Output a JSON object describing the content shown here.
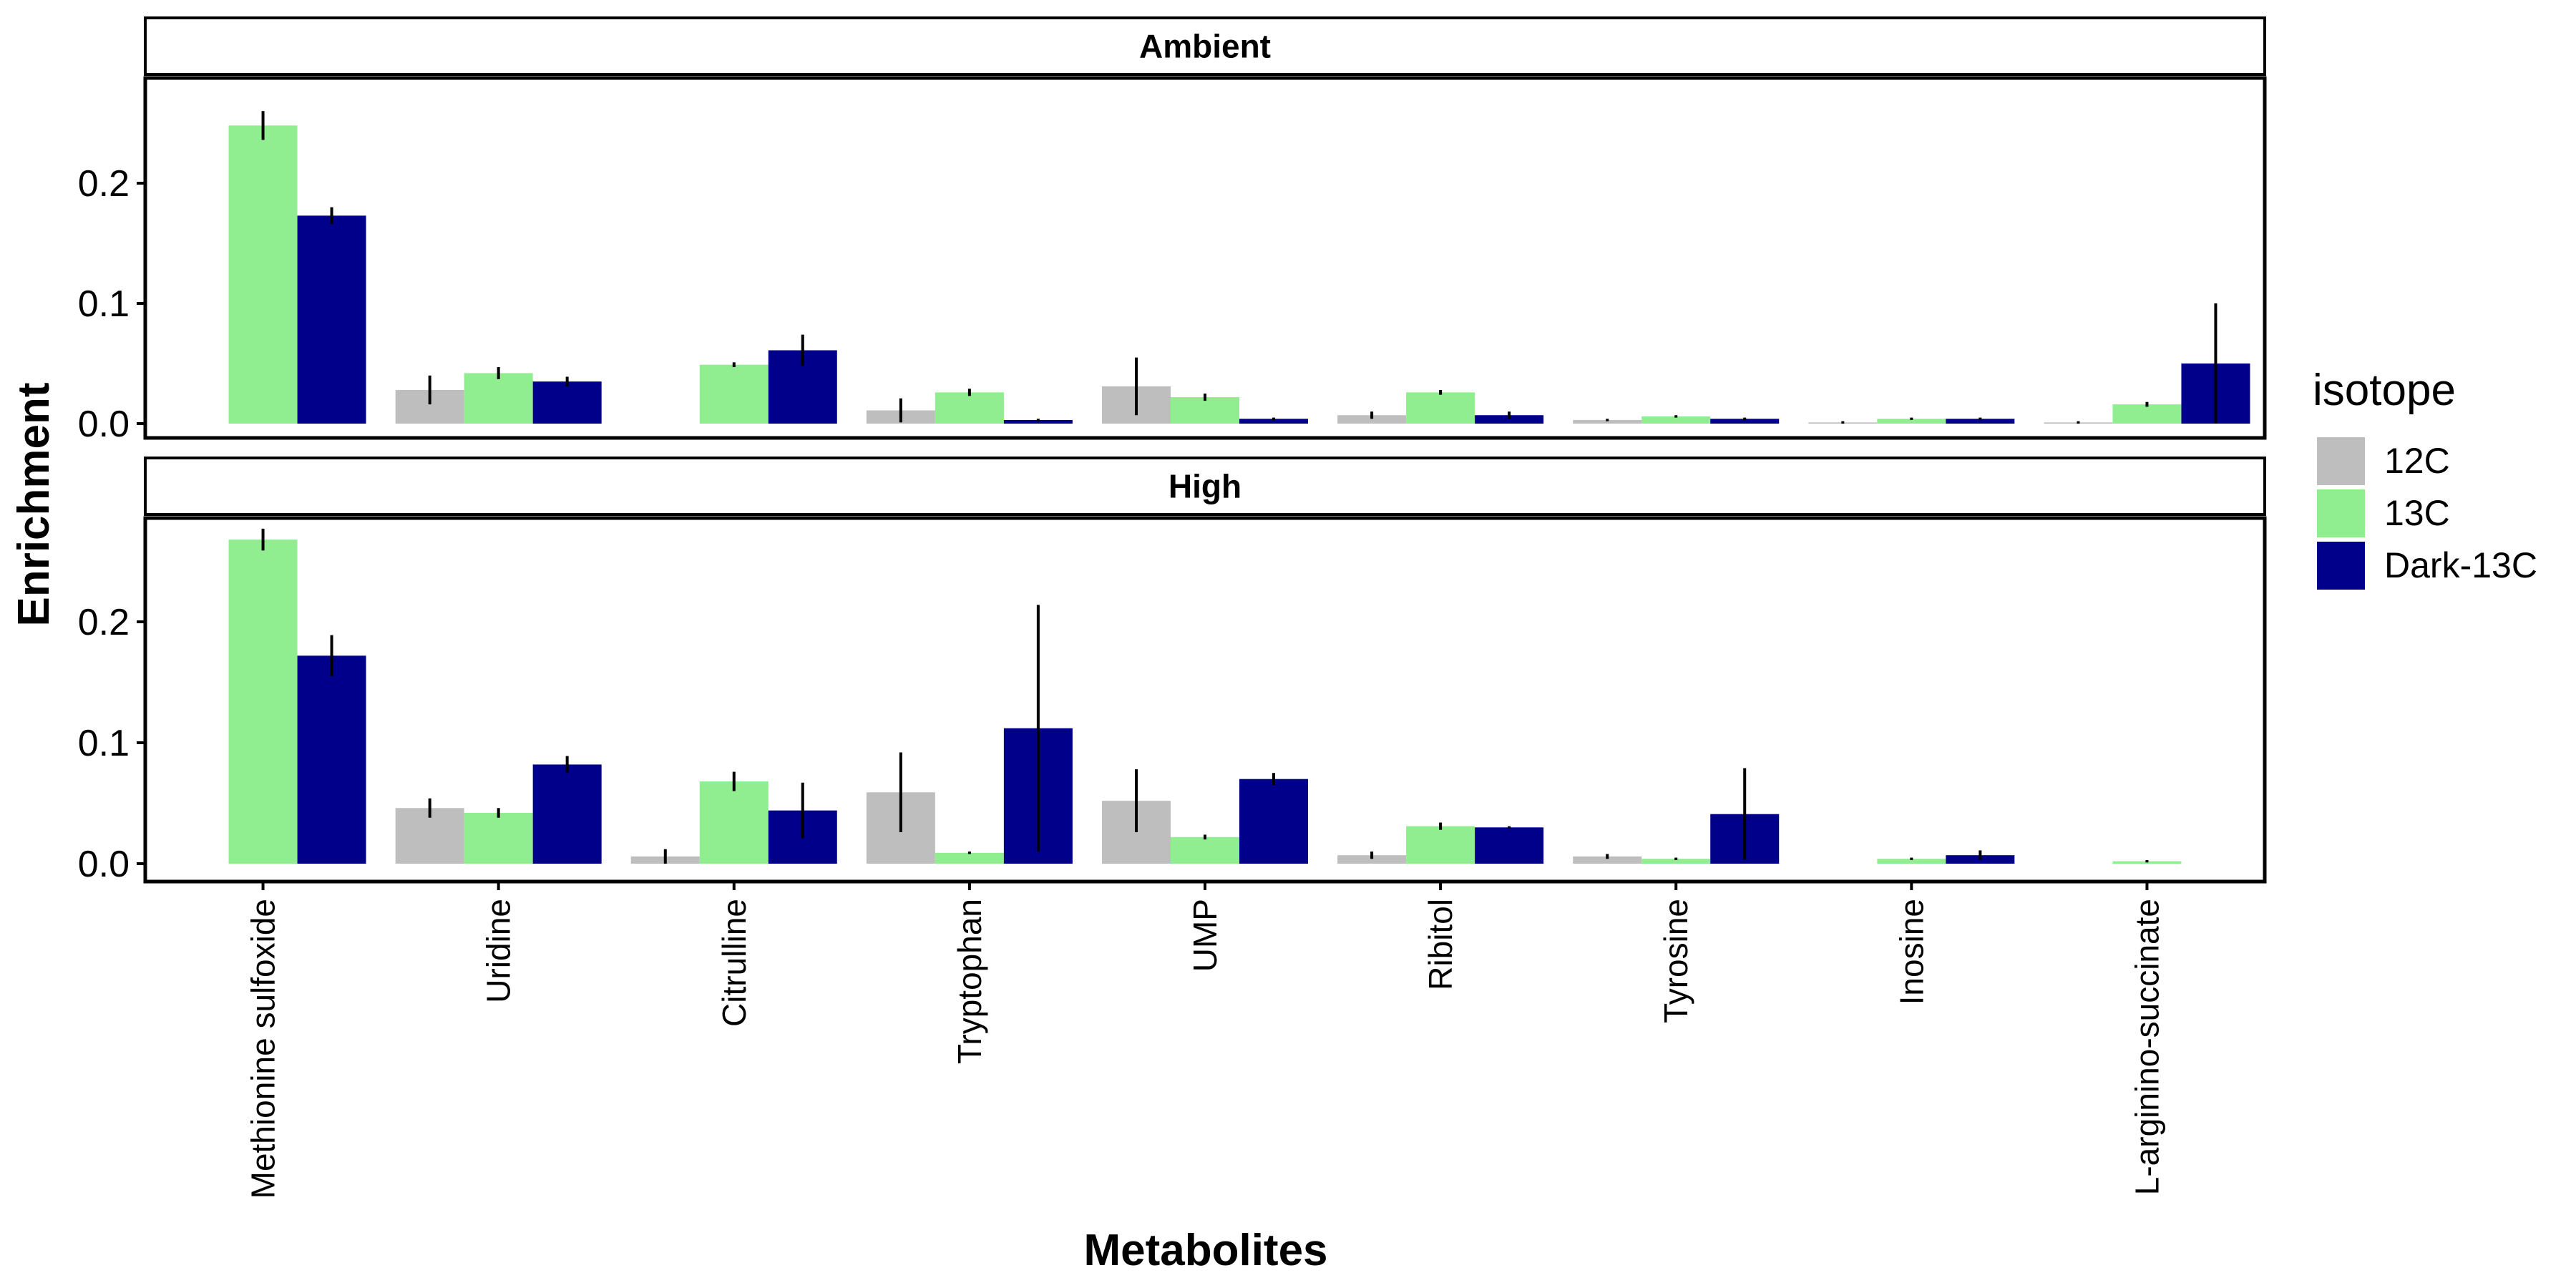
{
  "chart_data": {
    "type": "bar",
    "xlabel": "Metabolites",
    "ylabel": "Enrichment",
    "ylim": [
      0,
      0.28
    ],
    "yticks": [
      0.0,
      0.1,
      0.2
    ],
    "ytick_labels": [
      "0.0",
      "0.1",
      "0.2"
    ],
    "categories": [
      "Methionine sulfoxide",
      "Uridine",
      "Citrulline",
      "Tryptophan",
      "UMP",
      "Ribitol",
      "Tyrosine",
      "Inosine",
      "L-arginino-succinate"
    ],
    "legend": {
      "title": "isotope",
      "position": "right",
      "entries": [
        {
          "name": "12C",
          "color": "#BEBEBE"
        },
        {
          "name": "13C",
          "color": "#90EE90"
        },
        {
          "name": "Dark-13C",
          "color": "#00008B"
        }
      ]
    },
    "panels": [
      {
        "title": "Ambient",
        "series": [
          {
            "name": "12C",
            "values": [
              null,
              0.028,
              null,
              0.011,
              0.031,
              0.007,
              0.003,
              0.001,
              0.001
            ],
            "errors": [
              null,
              0.012,
              null,
              0.01,
              0.024,
              0.003,
              0.001,
              0.001,
              0.001
            ]
          },
          {
            "name": "13C",
            "values": [
              0.248,
              0.042,
              0.049,
              0.026,
              0.022,
              0.026,
              0.006,
              0.004,
              0.016
            ],
            "errors": [
              0.012,
              0.005,
              0.002,
              0.003,
              0.003,
              0.002,
              0.001,
              0.001,
              0.002
            ]
          },
          {
            "name": "Dark-13C",
            "values": [
              0.173,
              0.035,
              0.061,
              0.003,
              0.004,
              0.007,
              0.004,
              0.004,
              0.05
            ],
            "errors": [
              0.007,
              0.004,
              0.013,
              0.001,
              0.001,
              0.003,
              0.001,
              0.001,
              0.05
            ]
          }
        ]
      },
      {
        "title": "High",
        "series": [
          {
            "name": "12C",
            "values": [
              null,
              0.046,
              0.006,
              0.059,
              0.052,
              0.007,
              0.006,
              null,
              null
            ],
            "errors": [
              null,
              0.008,
              0.006,
              0.033,
              0.026,
              0.003,
              0.002,
              null,
              null
            ]
          },
          {
            "name": "13C",
            "values": [
              0.268,
              0.042,
              0.068,
              0.009,
              0.022,
              0.031,
              0.004,
              0.004,
              0.002
            ],
            "errors": [
              0.009,
              0.004,
              0.008,
              0.001,
              0.002,
              0.003,
              0.001,
              0.001,
              0.001
            ]
          },
          {
            "name": "Dark-13C",
            "values": [
              0.172,
              0.082,
              0.044,
              0.112,
              0.07,
              0.03,
              0.041,
              0.007,
              null
            ],
            "errors": [
              0.017,
              0.007,
              0.023,
              0.102,
              0.005,
              0.001,
              0.038,
              0.004,
              null
            ]
          }
        ]
      }
    ]
  }
}
